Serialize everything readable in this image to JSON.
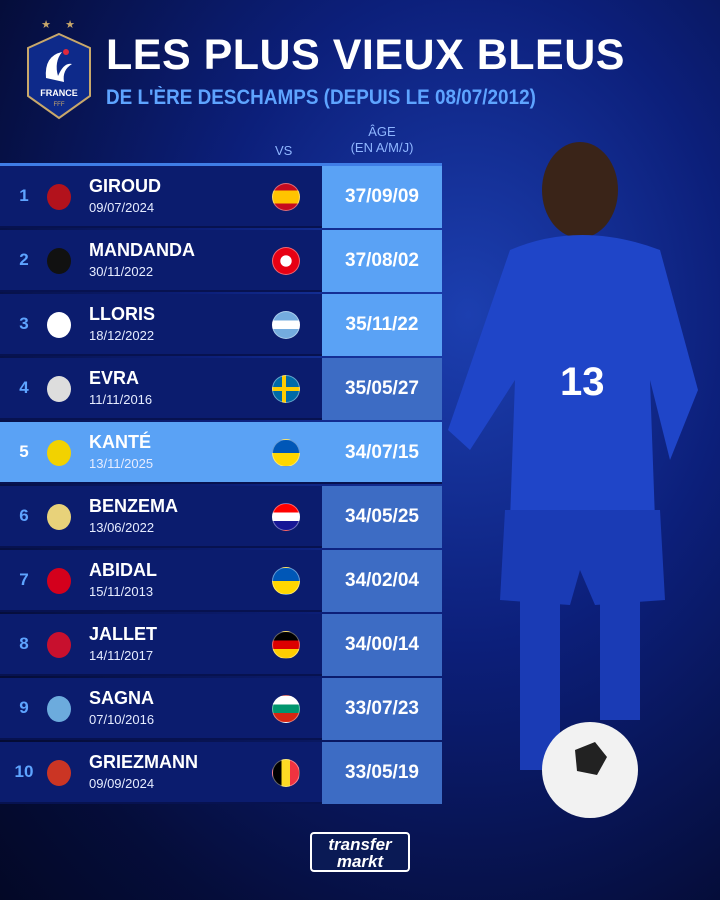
{
  "header": {
    "title": "LES PLUS VIEUX BLEUS",
    "subtitle": "DE L'ÈRE DESCHAMPS (DEPUIS LE 08/07/2012)",
    "logo_text": "FRANCE",
    "logo_sub": "FFF"
  },
  "columns": {
    "vs": "VS",
    "age_line1": "ÂGE",
    "age_line2": "(EN A/M/J)"
  },
  "colors": {
    "accent": "#5ea4ff",
    "highlight": "#5aa2f5",
    "row": "#0b1c6e",
    "age_cell": "#3d6cc4"
  },
  "rows": [
    {
      "rank": "1",
      "name": "GIROUD",
      "date": "09/07/2024",
      "club": "ac-milan-crest",
      "vs": "spain-flag",
      "age": "37/09/09"
    },
    {
      "rank": "2",
      "name": "MANDANDA",
      "date": "30/11/2022",
      "club": "stade-rennais-crest",
      "vs": "tunisia-flag",
      "age": "37/08/02"
    },
    {
      "rank": "3",
      "name": "LLORIS",
      "date": "18/12/2022",
      "club": "tottenham-crest",
      "vs": "argentina-flag",
      "age": "35/11/22"
    },
    {
      "rank": "4",
      "name": "EVRA",
      "date": "11/11/2016",
      "club": "juventus-crest",
      "vs": "sweden-flag",
      "age": "35/05/27"
    },
    {
      "rank": "5",
      "name": "KANTÉ",
      "date": "13/11/2025",
      "club": "al-ittihad-crest",
      "vs": "ukraine-flag",
      "age": "34/07/15",
      "highlight": true
    },
    {
      "rank": "6",
      "name": "BENZEMA",
      "date": "13/06/2022",
      "club": "real-madrid-crest",
      "vs": "croatia-flag",
      "age": "34/05/25"
    },
    {
      "rank": "7",
      "name": "ABIDAL",
      "date": "15/11/2013",
      "club": "as-monaco-crest",
      "vs": "ukraine-flag",
      "age": "34/02/04"
    },
    {
      "rank": "8",
      "name": "JALLET",
      "date": "14/11/2017",
      "club": "ogc-nice-crest",
      "vs": "germany-flag",
      "age": "34/00/14"
    },
    {
      "rank": "9",
      "name": "SAGNA",
      "date": "07/10/2016",
      "club": "manchester-city-crest",
      "vs": "bulgaria-flag",
      "age": "33/07/23"
    },
    {
      "rank": "10",
      "name": "GRIEZMANN",
      "date": "09/09/2024",
      "club": "atletico-madrid-crest",
      "vs": "belgium-flag",
      "age": "33/05/19"
    }
  ],
  "footer": {
    "brand_line1": "transfer",
    "brand_line2": "markt"
  }
}
